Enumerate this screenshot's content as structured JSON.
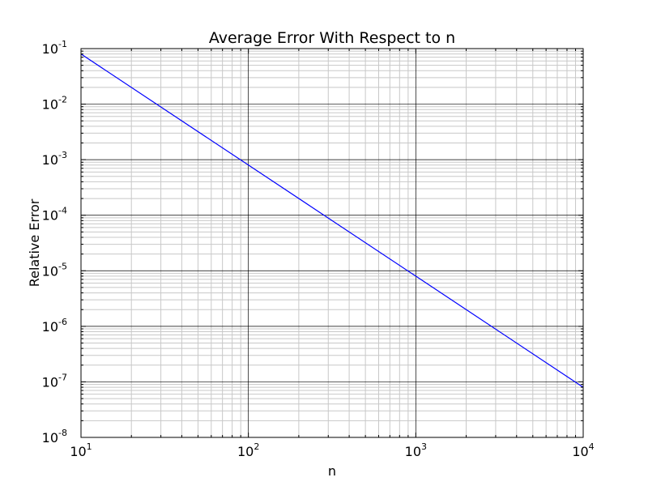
{
  "chart_data": {
    "type": "line",
    "title": "Average Error With Respect to n",
    "xlabel": "n",
    "ylabel": "Relative Error",
    "x_scale": "log",
    "y_scale": "log",
    "xlim": [
      10,
      10000
    ],
    "ylim": [
      1e-08,
      0.1
    ],
    "x_ticks": [
      {
        "base": "10",
        "exp": "1",
        "value": 10
      },
      {
        "base": "10",
        "exp": "2",
        "value": 100
      },
      {
        "base": "10",
        "exp": "3",
        "value": 1000
      },
      {
        "base": "10",
        "exp": "4",
        "value": 10000
      }
    ],
    "y_ticks": [
      {
        "base": "10",
        "exp": "-8",
        "value": 1e-08
      },
      {
        "base": "10",
        "exp": "-7",
        "value": 1e-07
      },
      {
        "base": "10",
        "exp": "-6",
        "value": 1e-06
      },
      {
        "base": "10",
        "exp": "-5",
        "value": 1e-05
      },
      {
        "base": "10",
        "exp": "-4",
        "value": 0.0001
      },
      {
        "base": "10",
        "exp": "-3",
        "value": 0.001
      },
      {
        "base": "10",
        "exp": "-2",
        "value": 0.01
      },
      {
        "base": "10",
        "exp": "-1",
        "value": 0.1
      }
    ],
    "grid": {
      "major": true,
      "minor": true
    },
    "series": [
      {
        "color": "#0000ff",
        "x": [
          10,
          100,
          1000,
          10000
        ],
        "y": [
          0.08,
          0.0008,
          8e-06,
          8e-08
        ]
      }
    ]
  }
}
